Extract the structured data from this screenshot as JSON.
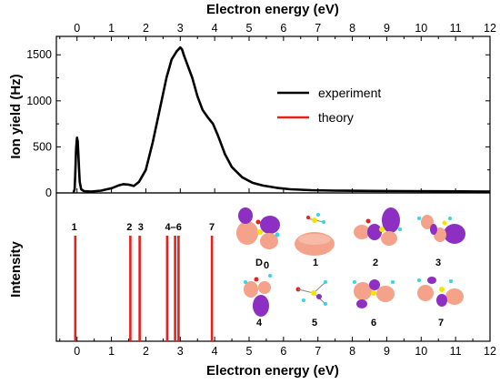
{
  "chart_data": [
    {
      "type": "line",
      "panel": "top",
      "xlabel": "Electron energy (eV)",
      "ylabel": "Ion yield (Hz)",
      "xlim": [
        -0.6,
        12
      ],
      "ylim": [
        0,
        1700
      ],
      "x_ticks": [
        "0",
        "1",
        "2",
        "3",
        "4",
        "5",
        "6",
        "7",
        "8",
        "9",
        "10",
        "11",
        "12"
      ],
      "y_ticks": [
        "0",
        "500",
        "1000",
        "1500"
      ],
      "x_tick_values": [
        0,
        1,
        2,
        3,
        4,
        5,
        6,
        7,
        8,
        9,
        10,
        11,
        12
      ],
      "y_tick_values": [
        0,
        500,
        1000,
        1500
      ],
      "legend": [
        {
          "label": "experiment",
          "color": "#000000"
        },
        {
          "label": "theory",
          "color": "#e8201d"
        }
      ],
      "legend_position": "top-right",
      "series": [
        {
          "name": "experiment",
          "color": "#000000",
          "x": [
            -0.1,
            -0.07,
            -0.05,
            -0.03,
            -0.02,
            0.0,
            0.02,
            0.04,
            0.06,
            0.08,
            0.12,
            0.2,
            0.4,
            0.7,
            1.0,
            1.2,
            1.35,
            1.5,
            1.65,
            1.8,
            2.0,
            2.2,
            2.4,
            2.6,
            2.75,
            2.9,
            3.0,
            3.05,
            3.1,
            3.2,
            3.35,
            3.5,
            3.65,
            3.8,
            3.95,
            4.1,
            4.3,
            4.5,
            4.8,
            5.1,
            5.4,
            5.8,
            6.2,
            6.8,
            7.5,
            8.5,
            9.5,
            10.5,
            11.5,
            12.0
          ],
          "y": [
            5,
            40,
            200,
            450,
            520,
            600,
            560,
            420,
            250,
            120,
            40,
            20,
            15,
            25,
            50,
            80,
            95,
            90,
            75,
            120,
            250,
            550,
            900,
            1250,
            1450,
            1540,
            1580,
            1560,
            1500,
            1400,
            1250,
            1050,
            900,
            820,
            750,
            620,
            420,
            280,
            170,
            110,
            80,
            55,
            40,
            30,
            25,
            22,
            20,
            18,
            16,
            15
          ]
        }
      ]
    },
    {
      "type": "bar",
      "panel": "bottom",
      "xlabel": "Electron energy (eV)",
      "ylabel": "Intensity",
      "xlim": [
        -0.6,
        12
      ],
      "x_ticks": [
        "0",
        "1",
        "2",
        "3",
        "4",
        "5",
        "6",
        "7",
        "8",
        "9",
        "10",
        "11",
        "12"
      ],
      "x_tick_values": [
        0,
        1,
        2,
        3,
        4,
        5,
        6,
        7,
        8,
        9,
        10,
        11,
        12
      ],
      "series": [
        {
          "name": "theory",
          "color": "#e8201d",
          "x": [
            -0.05,
            1.55,
            1.82,
            2.62,
            2.85,
            2.95,
            3.92
          ],
          "values": [
            1,
            1,
            1,
            1,
            1,
            1,
            1
          ]
        }
      ],
      "annotations": [
        {
          "text": "1",
          "x": -0.08
        },
        {
          "text": "2",
          "x": 1.52
        },
        {
          "text": "3",
          "x": 1.85
        },
        {
          "text": "4–6",
          "x": 2.8
        },
        {
          "text": "7",
          "x": 3.92
        }
      ],
      "orbital_labels": [
        "D0",
        "1",
        "2",
        "3",
        "4",
        "5",
        "6",
        "7"
      ],
      "orbital_colors": {
        "lobe_a": "#f4a28a",
        "lobe_b": "#8e2fc4",
        "atoms": "#f2e600",
        "atoms_h": "#33d5e8"
      }
    }
  ]
}
